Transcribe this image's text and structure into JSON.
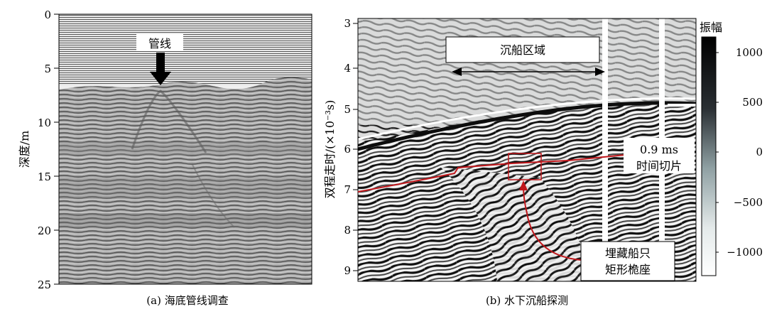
{
  "panel_a": {
    "caption": "(a) 海底管线调查",
    "ylabel": "深度/m",
    "yticks": [
      "0",
      "5",
      "10",
      "15",
      "20",
      "25"
    ],
    "annotation": "管线"
  },
  "panel_b": {
    "caption": "(b) 水下沉船探测",
    "ylabel": "双程走时/(×10⁻³s)",
    "yticks": [
      "3",
      "4",
      "5",
      "6",
      "7",
      "8",
      "9"
    ],
    "region_label": "沉船区域",
    "slice_label_1": "0.9 ms",
    "slice_label_2": "时间切片",
    "target_label_1": "埋藏船只",
    "target_label_2": "矩形桅座",
    "colorbar": {
      "title": "振幅",
      "ticks": [
        "1000",
        "500",
        "0",
        "−500",
        "−1000"
      ]
    }
  },
  "colors": {
    "slice_line": "#c0161b",
    "frame": "#000000"
  }
}
